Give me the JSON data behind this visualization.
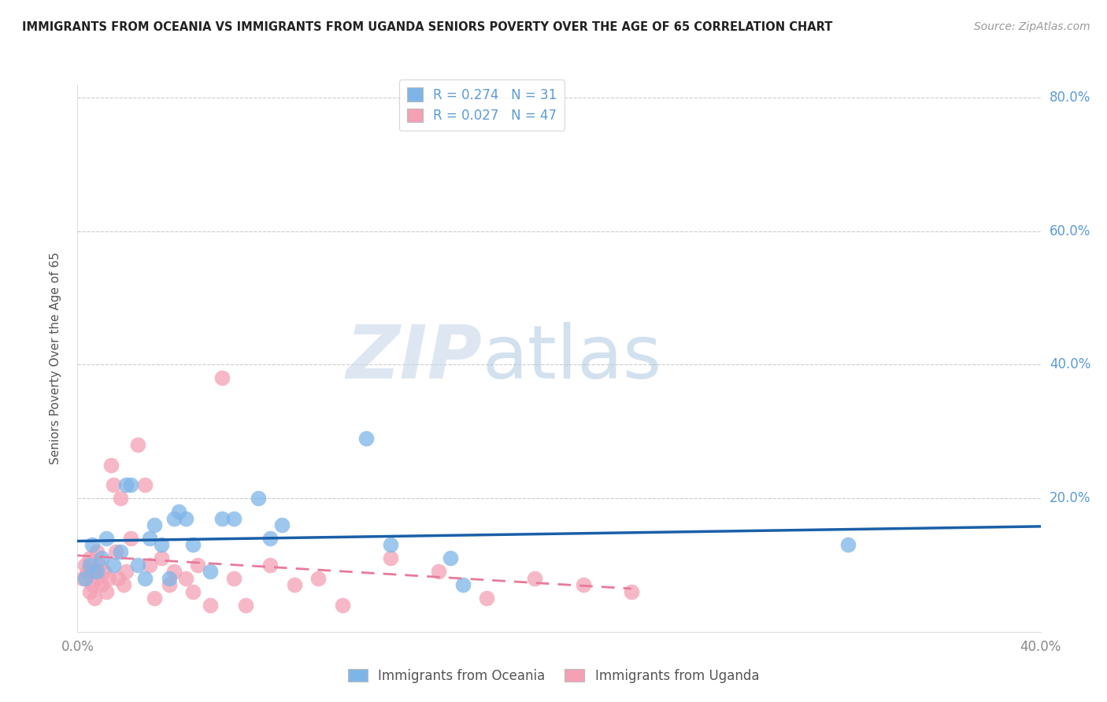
{
  "title": "IMMIGRANTS FROM OCEANIA VS IMMIGRANTS FROM UGANDA SENIORS POVERTY OVER THE AGE OF 65 CORRELATION CHART",
  "source": "Source: ZipAtlas.com",
  "ylabel": "Seniors Poverty Over the Age of 65",
  "xlim": [
    0.0,
    0.4
  ],
  "ylim": [
    0.0,
    0.82
  ],
  "xticks": [
    0.0,
    0.1,
    0.2,
    0.3,
    0.4
  ],
  "xtick_labels": [
    "0.0%",
    "",
    "",
    "",
    "40.0%"
  ],
  "ytick_labels_right": [
    "80.0%",
    "60.0%",
    "40.0%",
    "20.0%"
  ],
  "ytick_positions_right": [
    0.8,
    0.6,
    0.4,
    0.2
  ],
  "grid_color": "#cccccc",
  "background_color": "#ffffff",
  "watermark_zip": "ZIP",
  "watermark_atlas": "atlas",
  "legend_r1": "R = 0.274",
  "legend_n1": "N = 31",
  "legend_r2": "R = 0.027",
  "legend_n2": "N = 47",
  "oceania_color": "#7eb5e8",
  "oceania_edge": "#6aaad8",
  "uganda_color": "#f4a0b5",
  "uganda_edge": "#e890a5",
  "oceania_line_color": "#1a5fa8",
  "uganda_line_color": "#e87a9a",
  "oceania_x": [
    0.003,
    0.005,
    0.006,
    0.008,
    0.01,
    0.012,
    0.015,
    0.018,
    0.02,
    0.022,
    0.025,
    0.028,
    0.03,
    0.032,
    0.035,
    0.038,
    0.04,
    0.042,
    0.045,
    0.048,
    0.055,
    0.06,
    0.065,
    0.075,
    0.08,
    0.085,
    0.12,
    0.13,
    0.155,
    0.16,
    0.32
  ],
  "oceania_y": [
    0.08,
    0.1,
    0.13,
    0.09,
    0.11,
    0.14,
    0.1,
    0.12,
    0.22,
    0.22,
    0.1,
    0.08,
    0.14,
    0.16,
    0.13,
    0.08,
    0.17,
    0.18,
    0.17,
    0.13,
    0.09,
    0.17,
    0.17,
    0.2,
    0.14,
    0.16,
    0.29,
    0.13,
    0.11,
    0.07,
    0.13
  ],
  "uganda_x": [
    0.002,
    0.003,
    0.004,
    0.005,
    0.005,
    0.006,
    0.007,
    0.007,
    0.008,
    0.008,
    0.009,
    0.01,
    0.011,
    0.012,
    0.013,
    0.014,
    0.015,
    0.016,
    0.017,
    0.018,
    0.019,
    0.02,
    0.022,
    0.025,
    0.028,
    0.03,
    0.032,
    0.035,
    0.038,
    0.04,
    0.045,
    0.048,
    0.05,
    0.055,
    0.06,
    0.065,
    0.07,
    0.08,
    0.09,
    0.1,
    0.11,
    0.13,
    0.15,
    0.17,
    0.19,
    0.21,
    0.23
  ],
  "uganda_y": [
    0.08,
    0.1,
    0.09,
    0.06,
    0.11,
    0.07,
    0.05,
    0.09,
    0.08,
    0.12,
    0.1,
    0.07,
    0.09,
    0.06,
    0.08,
    0.25,
    0.22,
    0.12,
    0.08,
    0.2,
    0.07,
    0.09,
    0.14,
    0.28,
    0.22,
    0.1,
    0.05,
    0.11,
    0.07,
    0.09,
    0.08,
    0.06,
    0.1,
    0.04,
    0.38,
    0.08,
    0.04,
    0.1,
    0.07,
    0.08,
    0.04,
    0.11,
    0.09,
    0.05,
    0.08,
    0.07,
    0.06
  ]
}
